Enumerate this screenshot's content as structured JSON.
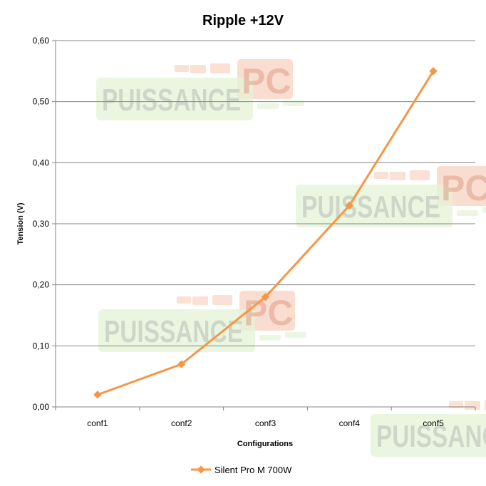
{
  "chart_data": {
    "type": "line",
    "title": "Ripple +12V",
    "xlabel": "Configurations",
    "ylabel": "Tension (V)",
    "categories": [
      "conf1",
      "conf2",
      "conf3",
      "conf4",
      "conf5"
    ],
    "ylim": [
      0,
      0.6
    ],
    "yticks": [
      "0,00",
      "0,10",
      "0,20",
      "0,30",
      "0,40",
      "0,50",
      "0,60"
    ],
    "grid": true,
    "legend": "bottom",
    "series": [
      {
        "name": "Silent Pro M 700W",
        "color": "#F79646",
        "values": [
          0.02,
          0.07,
          0.18,
          0.33,
          0.55
        ]
      }
    ]
  },
  "watermark": {
    "text": "PUISSANCE",
    "accent": "PC",
    "green": "#E3F3D6",
    "red": "#F8CBB8"
  }
}
